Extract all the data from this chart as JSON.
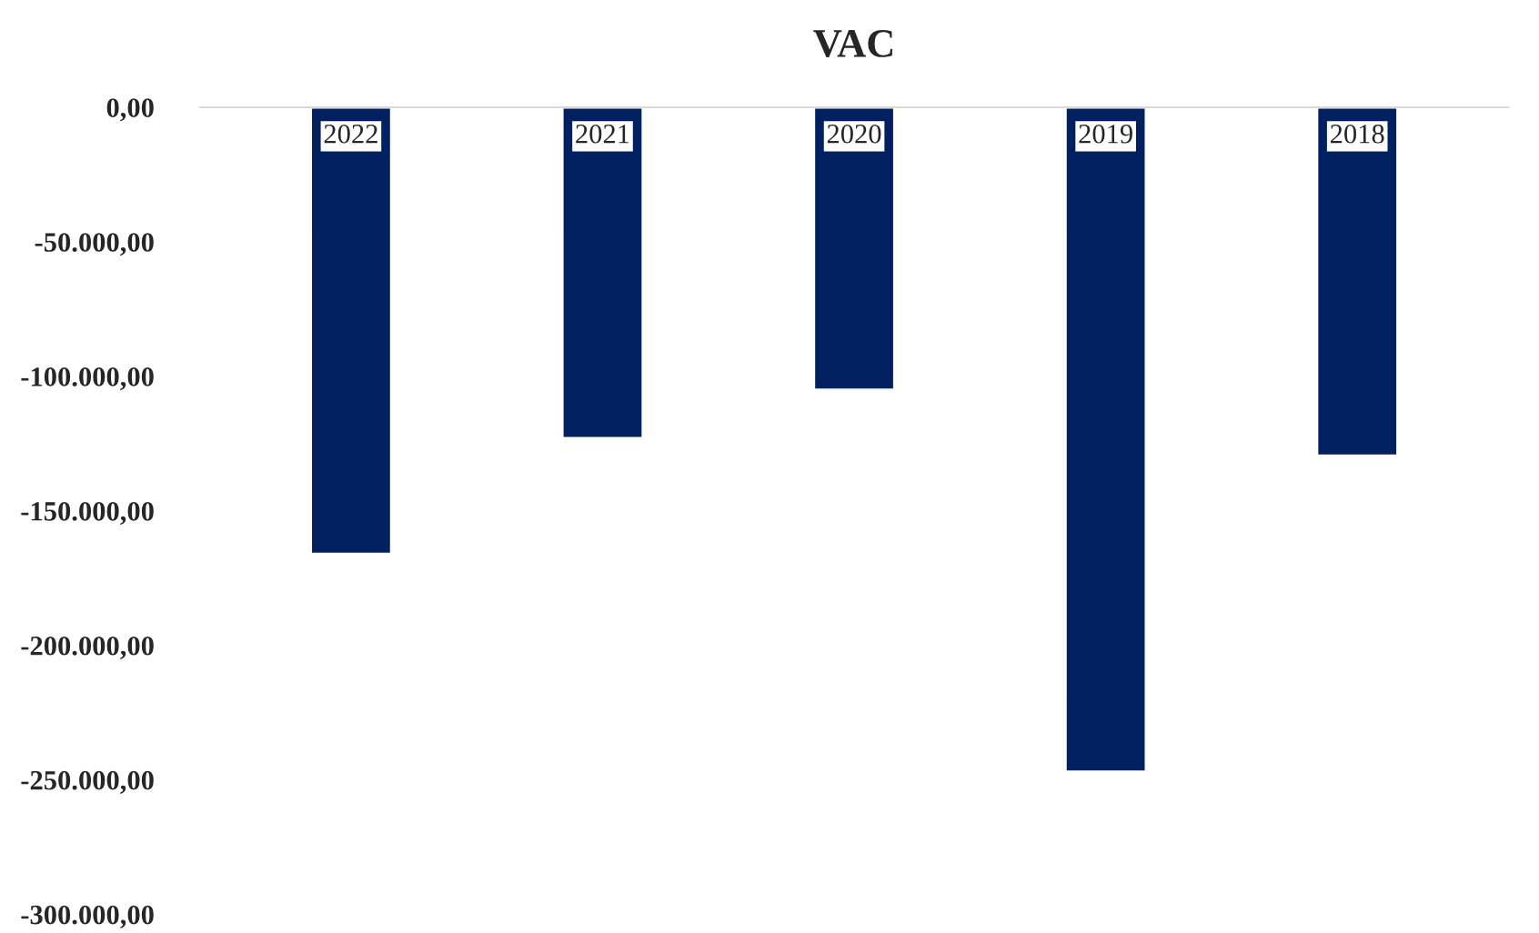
{
  "chart_data": {
    "type": "bar",
    "title": "VAC",
    "categories": [
      "2022",
      "2021",
      "2020",
      "2019",
      "2018"
    ],
    "values": [
      -166000,
      -123000,
      -105000,
      -247000,
      -129500
    ],
    "color": "#002060",
    "ylim": [
      -300000,
      0
    ],
    "yticks": [
      {
        "value": -300000,
        "label": "-300.000,00"
      },
      {
        "value": -250000,
        "label": "-250.000,00"
      },
      {
        "value": -200000,
        "label": "-200.000,00"
      },
      {
        "value": -150000,
        "label": "-150.000,00"
      },
      {
        "value": -100000,
        "label": "-100.000,00"
      },
      {
        "value": -50000,
        "label": "-50.000,00"
      },
      {
        "value": 0,
        "label": "0,00"
      }
    ],
    "grid": false
  }
}
